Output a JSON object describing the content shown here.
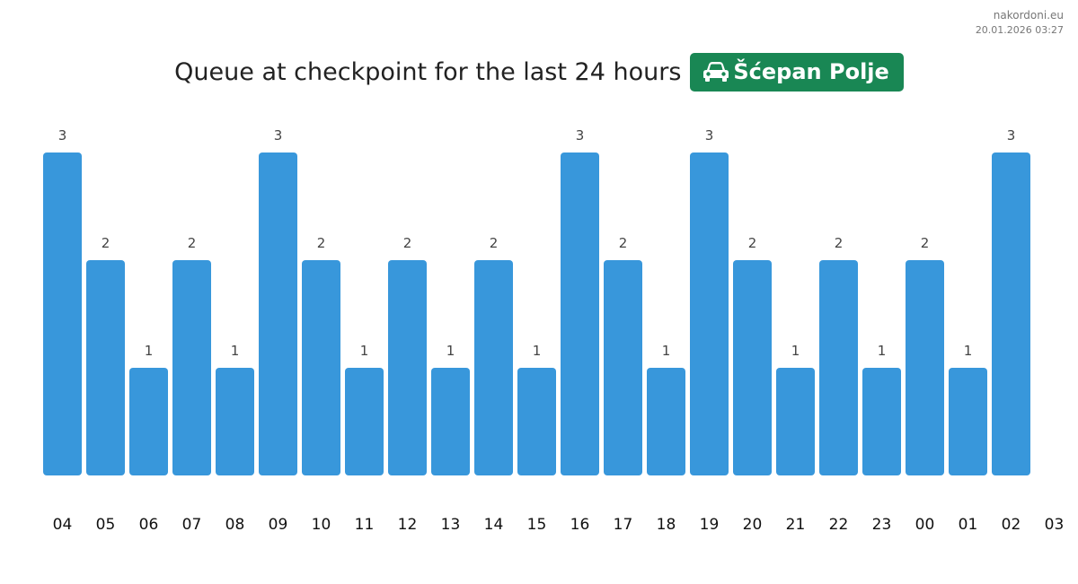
{
  "brand": {
    "site": "nakordoni.eu",
    "timestamp": "20.01.2026 03:27"
  },
  "header": {
    "title": "Queue at checkpoint for the last 24 hours",
    "checkpoint_name": "Šćepan Polje",
    "checkpoint_icon": "car-icon",
    "badge_color": "#198754"
  },
  "chart_data": {
    "type": "bar",
    "title": "Queue at checkpoint for the last 24 hours",
    "categories": [
      "04",
      "05",
      "06",
      "07",
      "08",
      "09",
      "10",
      "11",
      "12",
      "13",
      "14",
      "15",
      "16",
      "17",
      "18",
      "19",
      "20",
      "21",
      "22",
      "23",
      "00",
      "01",
      "02"
    ],
    "values": [
      3,
      2,
      1,
      2,
      1,
      3,
      2,
      1,
      2,
      1,
      2,
      1,
      3,
      2,
      1,
      3,
      2,
      1,
      2,
      1,
      2,
      1,
      3
    ],
    "x_tick_labels": [
      "04",
      "05",
      "06",
      "07",
      "08",
      "09",
      "10",
      "11",
      "12",
      "13",
      "14",
      "15",
      "16",
      "17",
      "18",
      "19",
      "20",
      "21",
      "22",
      "23",
      "00",
      "01",
      "02",
      "03"
    ],
    "xlabel": "",
    "ylabel": "",
    "ylim": [
      0,
      3
    ],
    "grid": false,
    "legend": "none",
    "bar_color": "#3897db"
  }
}
